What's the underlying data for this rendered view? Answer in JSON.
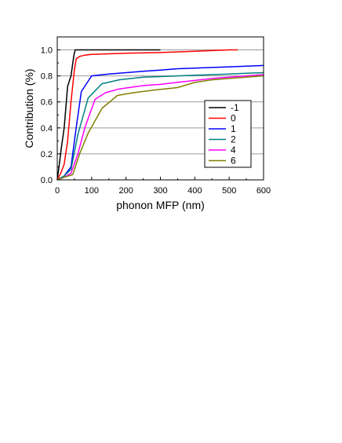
{
  "chart_data": {
    "type": "line",
    "xlabel": "phonon MFP (nm)",
    "ylabel": "Contribution (%)",
    "xlim": [
      0,
      600
    ],
    "ylim": [
      0,
      1.1
    ],
    "xticks": [
      0,
      100,
      200,
      300,
      400,
      500,
      600
    ],
    "xtick_labels": [
      "0",
      "100",
      "200",
      "300",
      "400",
      "500",
      "600"
    ],
    "yticks": [
      0,
      0.2,
      0.4,
      0.6,
      0.8,
      1.0
    ],
    "ytick_labels": [
      "0.0",
      "0.2",
      "0.4",
      "0.6",
      "0.8",
      "1.0"
    ],
    "grid": "horizontal",
    "legend_position": "right",
    "series": [
      {
        "name": "-1",
        "color": "#000000",
        "x": [
          0,
          5,
          12,
          20,
          30,
          40,
          48,
          52,
          100,
          200,
          300
        ],
        "y": [
          0,
          0.1,
          0.25,
          0.4,
          0.72,
          0.8,
          0.95,
          1.0,
          1.0,
          1.0,
          1.0
        ]
      },
      {
        "name": "0",
        "color": "#ff0000",
        "x": [
          0,
          10,
          20,
          30,
          40,
          50,
          55,
          65,
          80,
          100,
          200,
          300,
          400,
          450,
          500,
          525
        ],
        "y": [
          0,
          0.05,
          0.12,
          0.3,
          0.6,
          0.85,
          0.93,
          0.95,
          0.96,
          0.965,
          0.975,
          0.98,
          0.99,
          0.995,
          1.0,
          1.0
        ]
      },
      {
        "name": "1",
        "color": "#0000ff",
        "x": [
          0,
          20,
          40,
          55,
          70,
          100,
          150,
          200,
          250,
          300,
          350,
          400,
          450,
          500,
          550,
          600
        ],
        "y": [
          0,
          0.03,
          0.1,
          0.4,
          0.68,
          0.8,
          0.815,
          0.825,
          0.835,
          0.845,
          0.855,
          0.86,
          0.865,
          0.87,
          0.875,
          0.88
        ]
      },
      {
        "name": "2",
        "color": "#008080",
        "x": [
          0,
          20,
          40,
          60,
          90,
          130,
          180,
          250,
          300,
          350,
          400,
          450,
          500,
          550,
          600
        ],
        "y": [
          0,
          0.03,
          0.08,
          0.35,
          0.63,
          0.74,
          0.77,
          0.79,
          0.795,
          0.8,
          0.805,
          0.81,
          0.815,
          0.82,
          0.825
        ]
      },
      {
        "name": "4",
        "color": "#ff00ff",
        "x": [
          0,
          20,
          40,
          60,
          80,
          110,
          140,
          180,
          250,
          300,
          350,
          400,
          450,
          500,
          550,
          600
        ],
        "y": [
          0,
          0.02,
          0.05,
          0.2,
          0.4,
          0.62,
          0.67,
          0.7,
          0.725,
          0.735,
          0.75,
          0.765,
          0.78,
          0.79,
          0.8,
          0.81
        ]
      },
      {
        "name": "6",
        "color": "#808000",
        "x": [
          0,
          20,
          45,
          65,
          90,
          130,
          175,
          220,
          280,
          350,
          400,
          450,
          500,
          550,
          600
        ],
        "y": [
          0,
          0.02,
          0.04,
          0.2,
          0.36,
          0.55,
          0.65,
          0.67,
          0.69,
          0.71,
          0.75,
          0.77,
          0.78,
          0.79,
          0.8
        ]
      }
    ]
  }
}
